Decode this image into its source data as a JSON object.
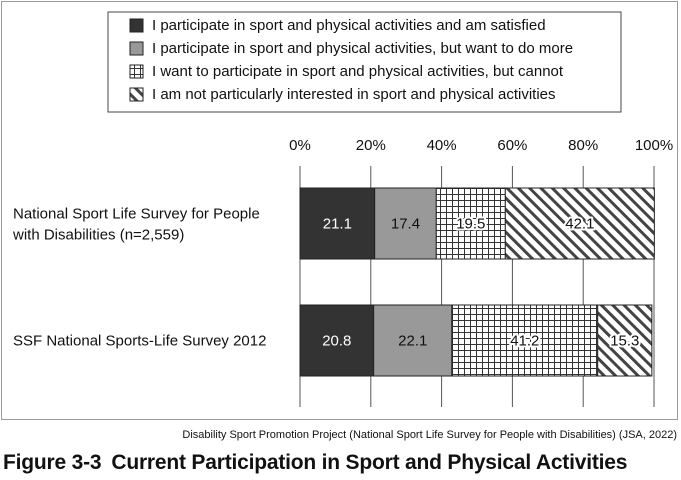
{
  "chart_data": {
    "type": "bar",
    "orientation": "horizontal",
    "stacked": true,
    "percent": true,
    "xlim": [
      0,
      100
    ],
    "ticks": [
      "0%",
      "20%",
      "40%",
      "60%",
      "80%",
      "100%"
    ],
    "categories": [
      [
        "National Sport Life Survey for People",
        "with Disabilities (n=2,559)"
      ],
      [
        "SSF National Sports-Life Survey 2012"
      ]
    ],
    "series": [
      {
        "name": "I participate in sport and physical activities and am satisfied",
        "values": [
          21.1,
          20.8
        ],
        "pattern": "solid",
        "color": "#333333",
        "label_color": "#ffffff"
      },
      {
        "name": "I participate in sport and physical activities, but want to do more",
        "values": [
          17.4,
          22.1
        ],
        "pattern": "solid",
        "color": "#999999",
        "label_color": "#111111"
      },
      {
        "name": "I want to participate in sport and physical activities, but cannot",
        "values": [
          19.5,
          41.2
        ],
        "pattern": "grid",
        "color": "#ffffff",
        "label_color": "#111111"
      },
      {
        "name": "I am not particularly interested in sport and physical activities",
        "values": [
          42.1,
          15.3
        ],
        "pattern": "diagonal",
        "color": "#ffffff",
        "label_color": "#111111"
      }
    ],
    "legend_position": "top",
    "grid": true
  },
  "source": "Disability Sport Promotion Project (National Sport Life Survey for People with Disabilities) (JSA, 2022)",
  "figure": {
    "number": "Figure 3-3",
    "title": "Current Participation in Sport and Physical Activities"
  }
}
